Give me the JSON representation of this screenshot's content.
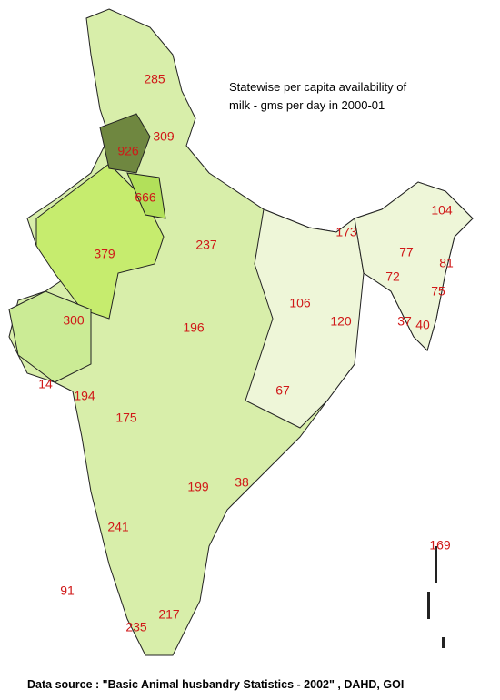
{
  "title": [
    "Statewise per capita availability of",
    "milk - gms per day in 2000-01"
  ],
  "labels": [
    285,
    926,
    309,
    666,
    379,
    237,
    173,
    104,
    77,
    72,
    81,
    75,
    37,
    40,
    300,
    196,
    106,
    120,
    14,
    194,
    175,
    67,
    199,
    38,
    241,
    91,
    235,
    217,
    169
  ],
  "source": "Data source : \"Basic Animal husbandry Statistics - 2002\" , DAHD, GOI"
}
